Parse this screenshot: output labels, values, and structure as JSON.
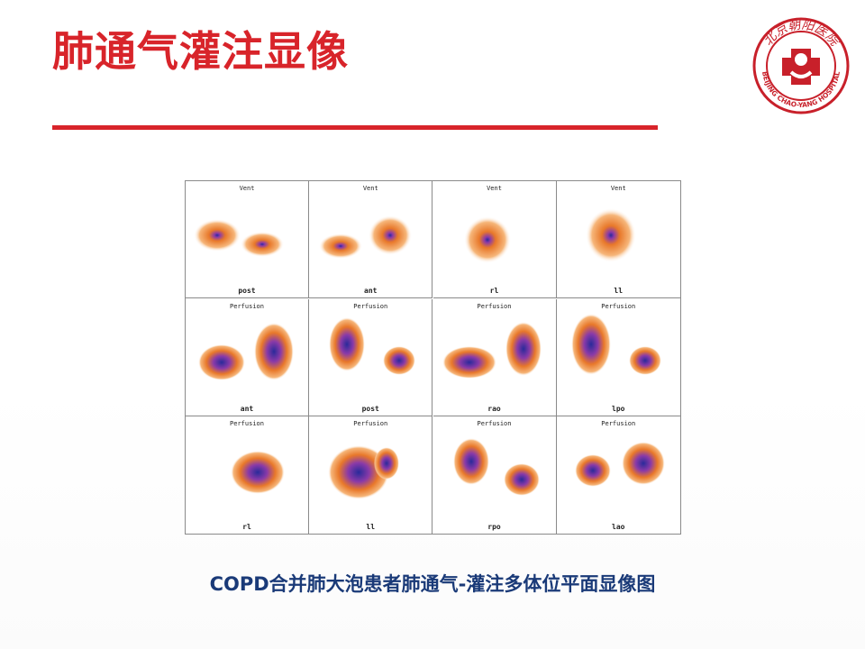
{
  "slide": {
    "title": "肺通气灌注显像",
    "caption": "COPD合并肺大泡患者肺通气-灌注多体位平面显像图"
  },
  "logo": {
    "text_top": "北京朝阳医院",
    "text_bottom": "BEIJING CHAO-YANG HOSPITAL",
    "color": "#c8202a"
  },
  "scan_grid": {
    "rows": [
      [
        {
          "label": "Vent",
          "view": "post"
        },
        {
          "label": "Vent",
          "view": "ant"
        },
        {
          "label": "Vent",
          "view": "rl"
        },
        {
          "label": "Vent",
          "view": "ll"
        }
      ],
      [
        {
          "label": "Perfusion",
          "view": "ant"
        },
        {
          "label": "Perfusion",
          "view": "post"
        },
        {
          "label": "Perfusion",
          "view": "rao"
        },
        {
          "label": "Perfusion",
          "view": "lpo"
        }
      ],
      [
        {
          "label": "Perfusion",
          "view": "rl"
        },
        {
          "label": "Perfusion",
          "view": "ll"
        },
        {
          "label": "Perfusion",
          "view": "rpo"
        },
        {
          "label": "Perfusion",
          "view": "lao"
        }
      ]
    ],
    "colors": {
      "low": "#f6b67a",
      "mid": "#e8782a",
      "high": "#8a3aa8",
      "peak": "#2a2a9a"
    }
  }
}
